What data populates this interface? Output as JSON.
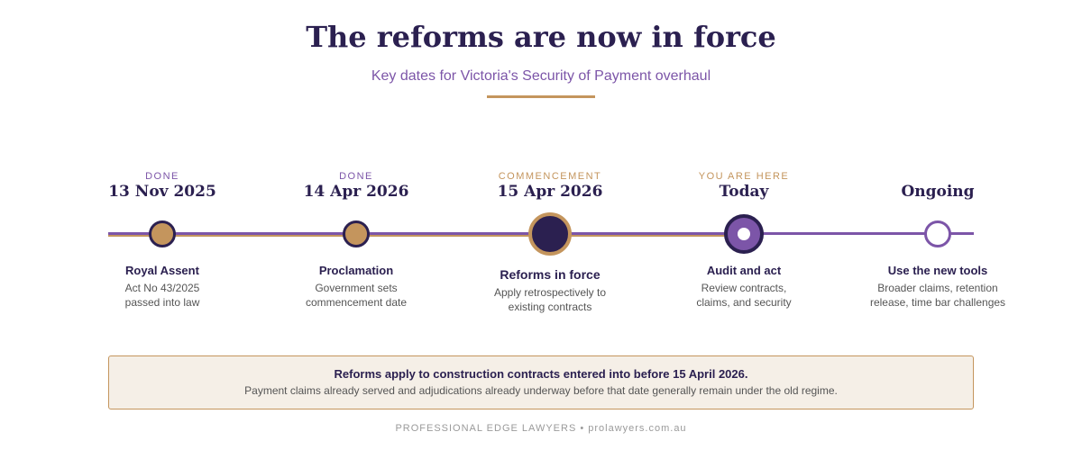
{
  "header": {
    "title": "The reforms are now in force",
    "subtitle": "Key dates for Victoria's Security of Payment overhaul"
  },
  "colors": {
    "navy": "#2b2050",
    "purple": "#7c55a8",
    "gold": "#c4955d",
    "panel": "#f5efe7"
  },
  "timeline": [
    {
      "status": "DONE",
      "date": "13 Nov 2025",
      "label": "Royal Assent",
      "desc1": "Act No 43/2025",
      "desc2": "passed into law"
    },
    {
      "status": "DONE",
      "date": "14 Apr 2026",
      "label": "Proclamation",
      "desc1": "Government sets",
      "desc2": "commencement date"
    },
    {
      "status": "COMMENCEMENT",
      "date": "15 Apr 2026",
      "label": "Reforms in force",
      "desc1": "Apply retrospectively to",
      "desc2": "existing contracts"
    },
    {
      "status": "YOU ARE HERE",
      "date": "Today",
      "label": "Audit and act",
      "desc1": "Review contracts,",
      "desc2": "claims, and security"
    },
    {
      "status": "",
      "date": "Ongoing",
      "label": "Use the new tools",
      "desc1": "Broader claims, retention",
      "desc2": "release, time bar challenges"
    }
  ],
  "notice": {
    "title": "Reforms apply to construction contracts entered into before 15 April 2026.",
    "body": "Payment claims already served and adjudications already underway before that date generally remain under the old regime."
  },
  "footer": "PROFESSIONAL EDGE LAWYERS • prolawyers.com.au"
}
